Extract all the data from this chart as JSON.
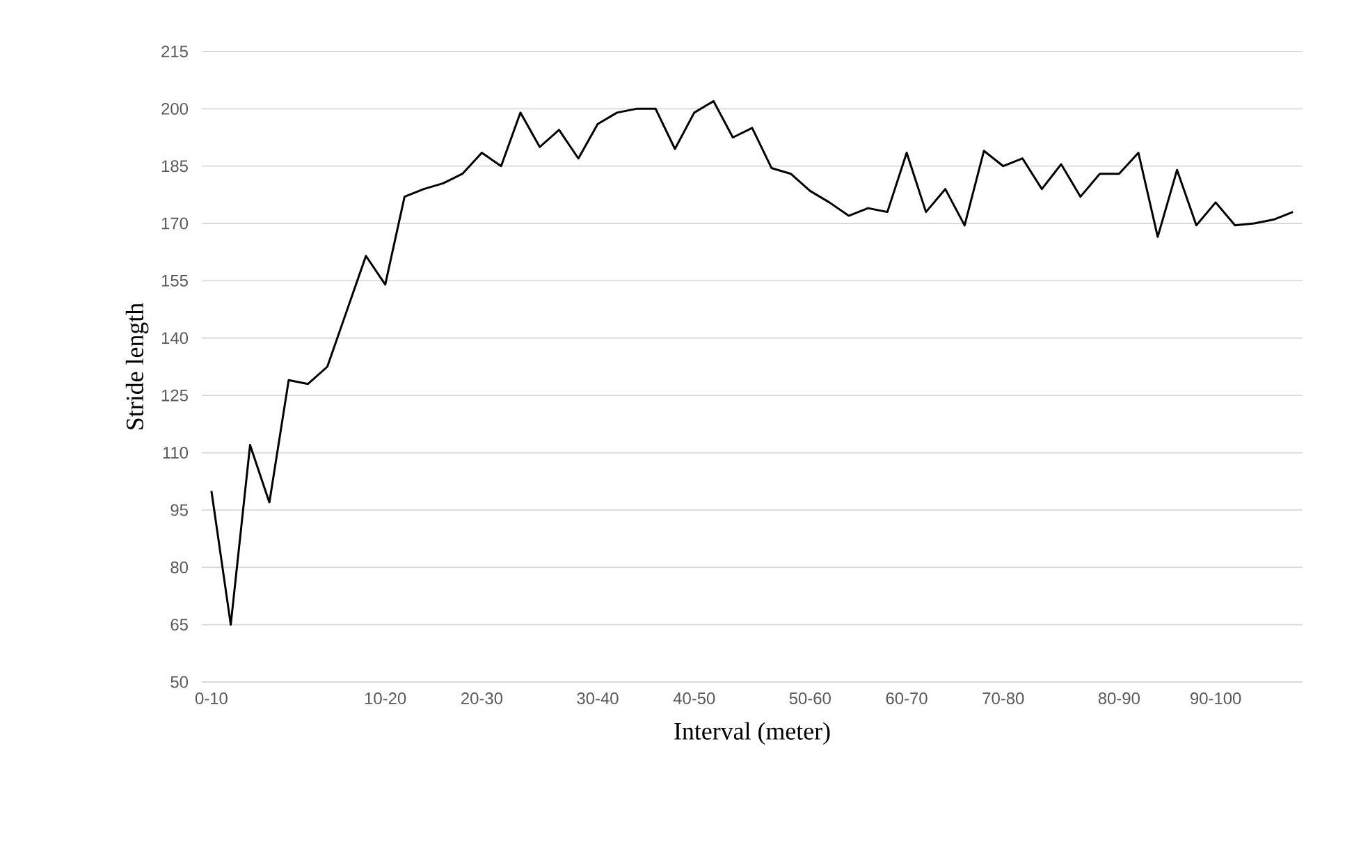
{
  "chart_data": {
    "type": "line",
    "xlabel": "Interval (meter)",
    "ylabel": "Stride length",
    "categories": [
      "0-10",
      null,
      null,
      null,
      null,
      null,
      null,
      null,
      null,
      "10-20",
      null,
      null,
      null,
      null,
      "20-30",
      null,
      null,
      null,
      null,
      null,
      "30-40",
      null,
      null,
      null,
      null,
      "40-50",
      null,
      null,
      null,
      null,
      null,
      "50-60",
      null,
      null,
      null,
      null,
      "60-70",
      null,
      null,
      null,
      null,
      "70-80",
      null,
      null,
      null,
      null,
      null,
      "80-90",
      null,
      null,
      null,
      null,
      "90-100",
      null,
      null,
      null,
      null
    ],
    "values": [
      100,
      65,
      112,
      97,
      129,
      128,
      132.5,
      147,
      161.5,
      154,
      177,
      179,
      180.5,
      183,
      188.5,
      185,
      199,
      190,
      194.5,
      187,
      196,
      199,
      200,
      200,
      189.5,
      199,
      202,
      192.5,
      195,
      184.5,
      183,
      178.5,
      175.5,
      172,
      174,
      173,
      188.5,
      173,
      179,
      169.5,
      189,
      185,
      187,
      179,
      185.5,
      177,
      183,
      183,
      188.5,
      166.5,
      184,
      169.5,
      175.5,
      169.5,
      170,
      171,
      173
    ],
    "color": "#000000",
    "ylim": [
      50,
      215
    ],
    "yticks": [
      50,
      65,
      80,
      95,
      110,
      125,
      140,
      155,
      170,
      185,
      200,
      215
    ],
    "grid": "y"
  }
}
